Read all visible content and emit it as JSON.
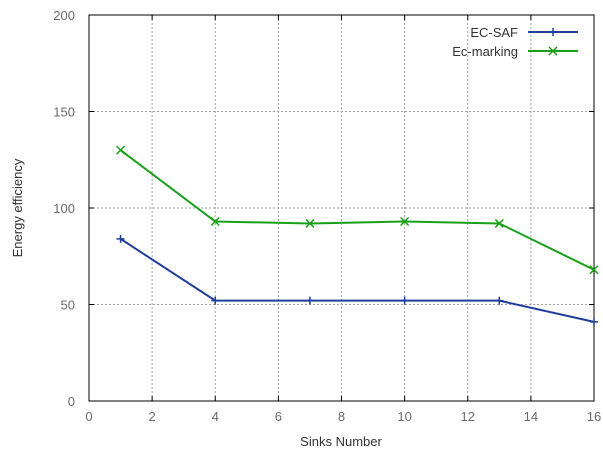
{
  "chart_data": {
    "type": "line",
    "xlabel": "Sinks Number",
    "ylabel": "Energy efficiency",
    "xlim": [
      0,
      16
    ],
    "ylim": [
      0,
      200
    ],
    "xticks": [
      "0",
      "2",
      "4",
      "6",
      "8",
      "10",
      "12",
      "14",
      "16"
    ],
    "yticks": [
      "0",
      "50",
      "100",
      "150",
      "200"
    ],
    "grid": true,
    "legend_position": "top-right",
    "series": [
      {
        "name": "EC-SAF",
        "color": "#1f3d99",
        "marker": "plus",
        "x": [
          1,
          4,
          7,
          10,
          13,
          16
        ],
        "y": [
          84,
          52,
          52,
          52,
          52,
          41
        ]
      },
      {
        "name": "Ec-marking",
        "color": "#18a018",
        "marker": "cross",
        "x": [
          1,
          4,
          7,
          10,
          13,
          16
        ],
        "y": [
          130,
          93,
          92,
          93,
          92,
          68
        ]
      }
    ]
  }
}
